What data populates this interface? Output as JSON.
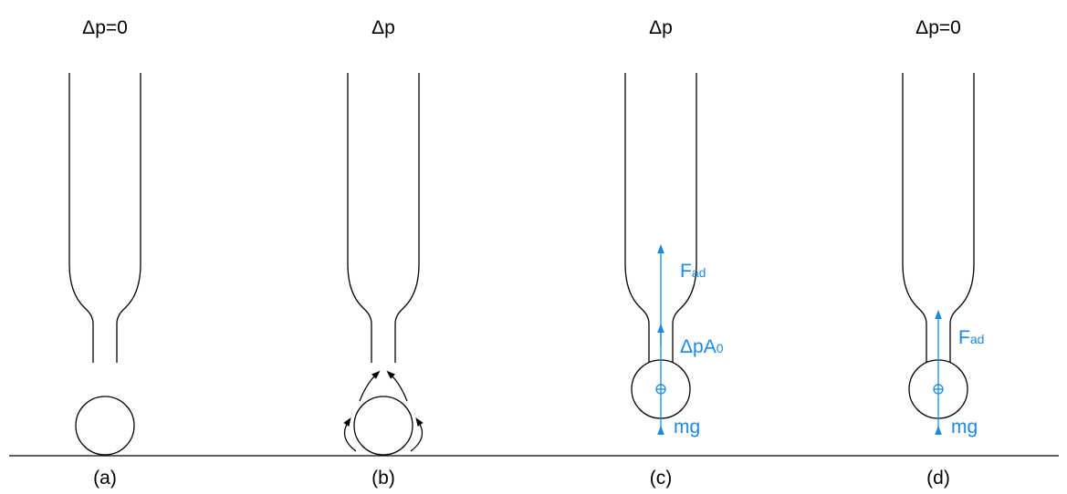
{
  "panels": [
    {
      "pressure": "Δp=0",
      "caption": "(a)"
    },
    {
      "pressure": "Δp",
      "caption": "(b)"
    },
    {
      "pressure": "Δp",
      "caption": "(c)",
      "forces": {
        "adhesion": {
          "main": "F",
          "sub": "ad"
        },
        "suction": {
          "main": "ΔpA",
          "sub": "0"
        },
        "weight": "mg"
      }
    },
    {
      "pressure": "Δp=0",
      "caption": "(d)",
      "forces": {
        "adhesion": {
          "main": "F",
          "sub": "ad"
        },
        "weight": "mg"
      }
    }
  ]
}
